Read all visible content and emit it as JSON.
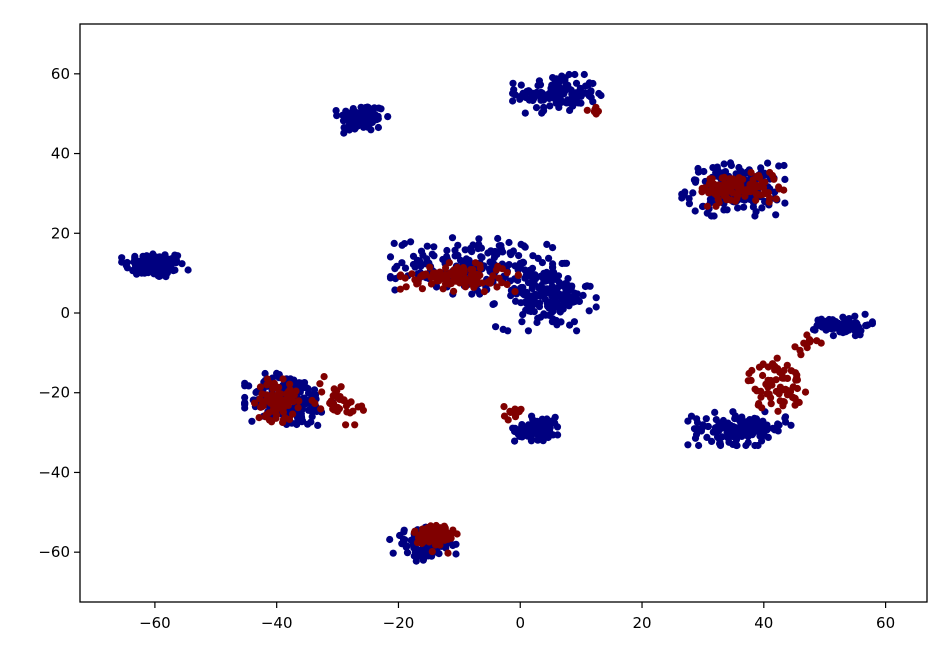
{
  "chart_data": {
    "type": "scatter",
    "title": "",
    "xlabel": "",
    "ylabel": "",
    "xlim": [
      -72.3,
      66.8
    ],
    "ylim": [
      -72.5,
      72.5
    ],
    "x_ticks": [
      -60,
      -40,
      -20,
      0,
      20,
      40,
      60
    ],
    "y_ticks": [
      -60,
      -40,
      -20,
      0,
      20,
      40,
      60
    ],
    "x_tick_labels": [
      "−60",
      "−40",
      "−20",
      "0",
      "20",
      "40",
      "60"
    ],
    "y_tick_labels": [
      "−60",
      "−40",
      "−20",
      "0",
      "20",
      "40",
      "60"
    ],
    "grid": false,
    "legend": "none",
    "series": [
      {
        "color": "#000080",
        "clusters": [
          {
            "center": [
              -60,
              12
            ],
            "spread": [
              4.5,
              3.0
            ],
            "count": 110
          },
          {
            "center": [
              -26,
              49
            ],
            "spread": [
              3.5,
              3.2
            ],
            "count": 85
          },
          {
            "center": [
              6,
              55
            ],
            "spread": [
              6.0,
              4.0
            ],
            "count": 130
          },
          {
            "center": [
              35,
              31
            ],
            "spread": [
              7.0,
              5.5
            ],
            "count": 170
          },
          {
            "center": [
              -8,
              12
            ],
            "spread": [
              11.0,
              6.0
            ],
            "count": 180
          },
          {
            "center": [
              4,
              4
            ],
            "spread": [
              7.0,
              7.0
            ],
            "count": 170
          },
          {
            "center": [
              53,
              -3
            ],
            "spread": [
              4.0,
              2.2
            ],
            "count": 70
          },
          {
            "center": [
              -38,
              -22
            ],
            "spread": [
              6.0,
              6.0
            ],
            "count": 190
          },
          {
            "center": [
              3,
              -29
            ],
            "spread": [
              3.5,
              2.6
            ],
            "count": 80
          },
          {
            "center": [
              36,
              -29
            ],
            "spread": [
              7.0,
              3.5
            ],
            "count": 140
          },
          {
            "center": [
              -16,
              -58
            ],
            "spread": [
              4.5,
              3.5
            ],
            "count": 90
          }
        ]
      },
      {
        "color": "#800000",
        "clusters": [
          {
            "center": [
              -10,
              9
            ],
            "spread": [
              8.0,
              3.0
            ],
            "count": 110
          },
          {
            "center": [
              36,
              31
            ],
            "spread": [
              6.0,
              3.5
            ],
            "count": 110
          },
          {
            "center": [
              -40,
              -22
            ],
            "spread": [
              3.0,
              4.5
            ],
            "count": 80
          },
          {
            "center": [
              -30,
              -22
            ],
            "spread": [
              3.5,
              5.0
            ],
            "count": 40
          },
          {
            "center": [
              42,
              -18
            ],
            "spread": [
              4.0,
              5.5
            ],
            "count": 70
          },
          {
            "center": [
              -14,
              -56
            ],
            "spread": [
              3.0,
              3.5
            ],
            "count": 70
          },
          {
            "center": [
              -1,
              -25
            ],
            "spread": [
              1.5,
              1.5
            ],
            "count": 12
          },
          {
            "center": [
              12,
              51
            ],
            "spread": [
              1.5,
              1.5
            ],
            "count": 6
          },
          {
            "center": [
              47,
              -8
            ],
            "spread": [
              2.0,
              2.5
            ],
            "count": 12
          }
        ]
      }
    ]
  }
}
